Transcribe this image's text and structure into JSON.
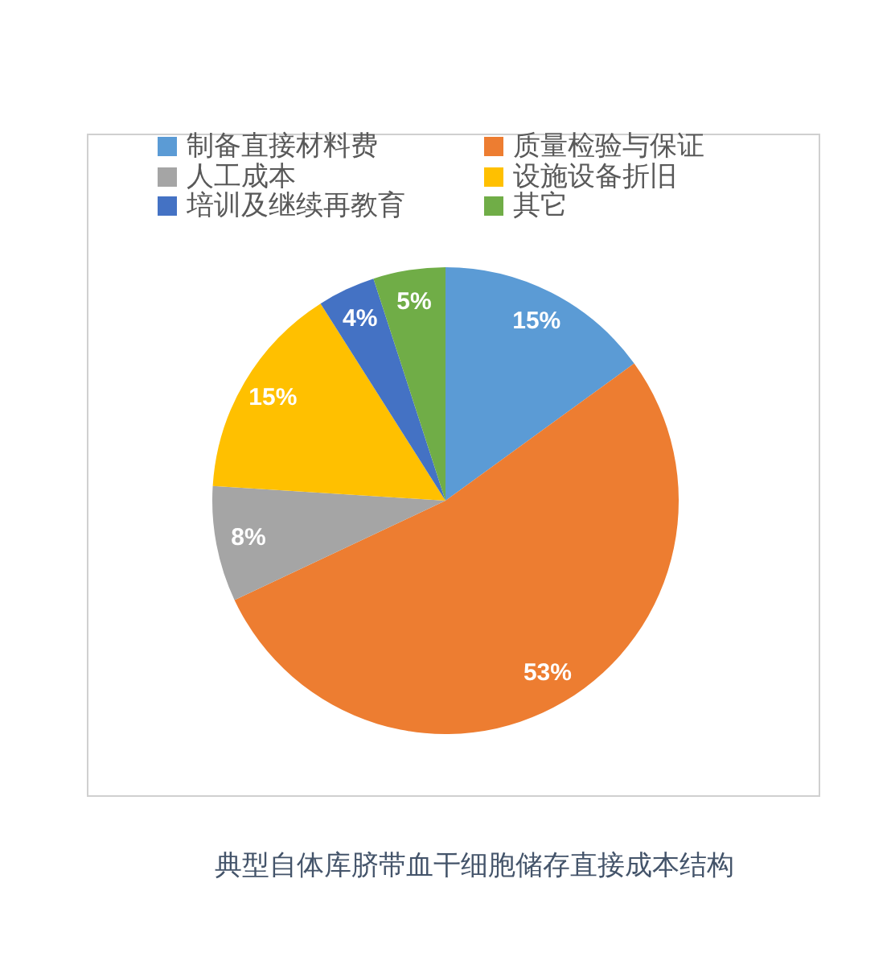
{
  "chart_data": {
    "type": "pie",
    "title": "典型自体库脐带血干细胞储存直接成本结构",
    "categories": [
      "制备直接材料费",
      "质量检验与保证",
      "人工成本",
      "设施设备折旧",
      "培训及继续再教育",
      "其它"
    ],
    "values": [
      15,
      53,
      8,
      15,
      4,
      5
    ],
    "colors": [
      "#5b9bd5",
      "#ed7d31",
      "#a5a5a5",
      "#ffc000",
      "#4472c4",
      "#70ad47"
    ],
    "value_labels": [
      "15%",
      "53%",
      "8%",
      "15%",
      "4%",
      "5%"
    ],
    "legend": "top"
  }
}
